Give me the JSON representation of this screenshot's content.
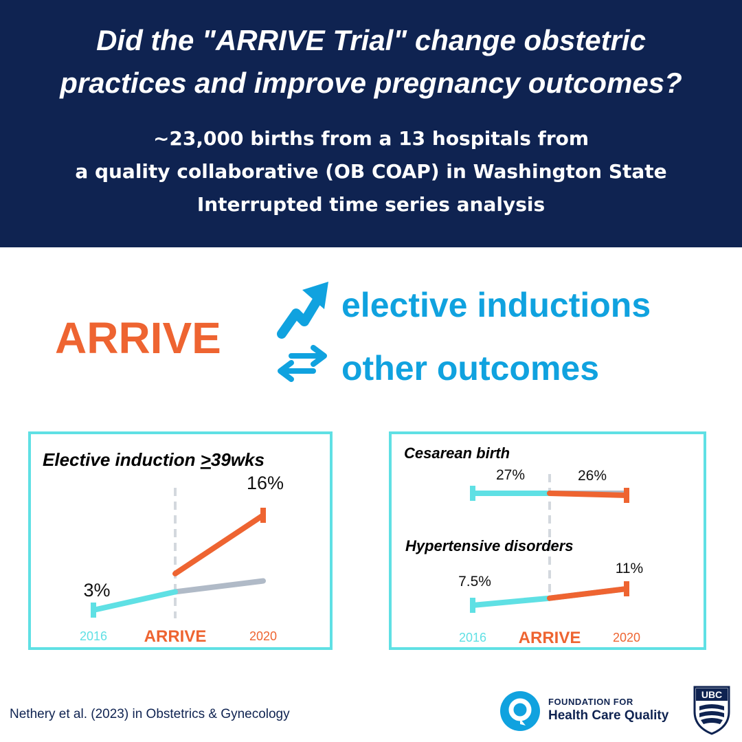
{
  "header": {
    "title": "Did the \"ARRIVE Trial\" change obstetric\npractices and improve pregnancy outcomes?",
    "subtitle_lines": [
      "~23,000 births from a 13 hospitals from",
      "a quality collaborative (OB COAP) in Washington State",
      "Interrupted time series analysis"
    ]
  },
  "summary": {
    "intervention": "ARRIVE",
    "up_label": "elective inductions",
    "unchanged_label": "other outcomes",
    "up_icon": "trend-up-arrow-icon",
    "unchanged_icon": "exchange-arrows-icon"
  },
  "colors": {
    "navy": "#0f2351",
    "orange": "#ee6431",
    "cyan": "#5fe0e4",
    "blue": "#10a2df",
    "gray": "#b0bac7"
  },
  "chart_data": [
    {
      "type": "line",
      "title": "Elective induction >39wks",
      "x_ticks": [
        "2016",
        "ARRIVE",
        "2020"
      ],
      "series": [
        {
          "segment": "pre",
          "x": [
            "2016",
            "ARRIVE"
          ],
          "values": [
            3,
            5.5
          ],
          "labels": [
            "3%",
            ""
          ]
        },
        {
          "segment": "post",
          "x": [
            "ARRIVE",
            "2020"
          ],
          "values": [
            8,
            16
          ],
          "labels": [
            "",
            "16%"
          ]
        },
        {
          "segment": "counterfactual",
          "x": [
            "ARRIVE",
            "2020"
          ],
          "values": [
            5.5,
            7
          ]
        }
      ],
      "ylim": [
        0,
        18
      ]
    },
    {
      "type": "line",
      "title": "Cesarean birth",
      "x_ticks": [
        "2016",
        "ARRIVE",
        "2020"
      ],
      "series": [
        {
          "segment": "pre",
          "x": [
            "2016",
            "ARRIVE"
          ],
          "values": [
            27,
            27
          ],
          "labels": [
            "27%",
            ""
          ]
        },
        {
          "segment": "post",
          "x": [
            "ARRIVE",
            "2020"
          ],
          "values": [
            27,
            26
          ],
          "labels": [
            "",
            "26%"
          ]
        },
        {
          "segment": "counterfactual",
          "x": [
            "ARRIVE",
            "2020"
          ],
          "values": [
            27,
            27
          ]
        }
      ]
    },
    {
      "type": "line",
      "title": "Hypertensive disorders",
      "x_ticks": [
        "2016",
        "ARRIVE",
        "2020"
      ],
      "series": [
        {
          "segment": "pre",
          "x": [
            "2016",
            "ARRIVE"
          ],
          "values": [
            7.5,
            9
          ],
          "labels": [
            "7.5%",
            ""
          ]
        },
        {
          "segment": "post",
          "x": [
            "ARRIVE",
            "2020"
          ],
          "values": [
            9,
            11
          ],
          "labels": [
            "",
            "11%"
          ]
        },
        {
          "segment": "counterfactual",
          "x": [
            "ARRIVE",
            "2020"
          ],
          "values": [
            9,
            11
          ]
        }
      ]
    }
  ],
  "footer": {
    "citation": "Nethery et al. (2023) in Obstetrics & Gynecology",
    "org_line1": "FOUNDATION FOR",
    "org_line2": "Health Care Quality",
    "ubc_logo": "UBC"
  }
}
